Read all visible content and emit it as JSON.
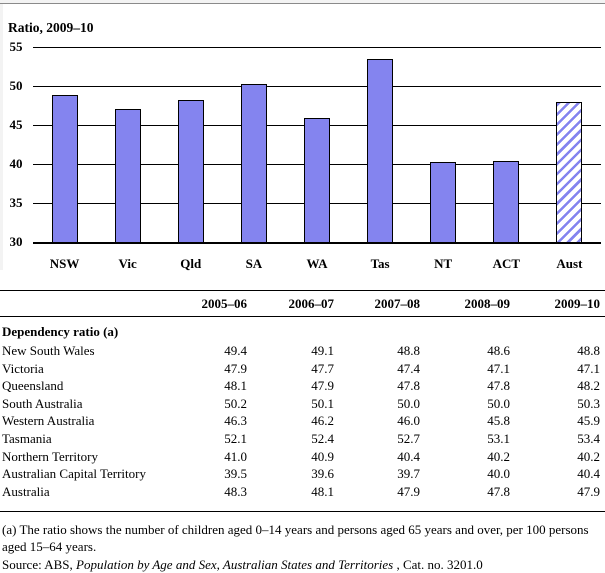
{
  "chart_data": {
    "type": "bar",
    "title": "Ratio, 2009–10",
    "categories": [
      "NSW",
      "Vic",
      "Qld",
      "SA",
      "WA",
      "Tas",
      "NT",
      "ACT",
      "Aust"
    ],
    "values": [
      48.8,
      47.1,
      48.2,
      50.3,
      45.9,
      53.4,
      40.2,
      40.4,
      47.9
    ],
    "ylim": [
      30,
      55
    ],
    "yticks": [
      30,
      35,
      40,
      45,
      50,
      55
    ],
    "grid": "horizontal",
    "legend": "none",
    "bar_color": "#8484ef",
    "bar_border_color": "#000000",
    "last_bar_style": "hatched-diagonal"
  },
  "table": {
    "columns": [
      "2005–06",
      "2006–07",
      "2007–08",
      "2008–09",
      "2009–10"
    ],
    "section_label": "Dependency ratio (a)",
    "rows": [
      {
        "label": "New South Wales",
        "values": [
          "49.4",
          "49.1",
          "48.8",
          "48.6",
          "48.8"
        ]
      },
      {
        "label": "Victoria",
        "values": [
          "47.9",
          "47.7",
          "47.4",
          "47.1",
          "47.1"
        ]
      },
      {
        "label": "Queensland",
        "values": [
          "48.1",
          "47.9",
          "47.8",
          "47.8",
          "48.2"
        ]
      },
      {
        "label": "South Australia",
        "values": [
          "50.2",
          "50.1",
          "50.0",
          "50.0",
          "50.3"
        ]
      },
      {
        "label": "Western Australia",
        "values": [
          "46.3",
          "46.2",
          "46.0",
          "45.8",
          "45.9"
        ]
      },
      {
        "label": "Tasmania",
        "values": [
          "52.1",
          "52.4",
          "52.7",
          "53.1",
          "53.4"
        ]
      },
      {
        "label": "Northern Territory",
        "values": [
          "41.0",
          "40.9",
          "40.4",
          "40.2",
          "40.2"
        ]
      },
      {
        "label": "Australian Capital Territory",
        "values": [
          "39.5",
          "39.6",
          "39.7",
          "40.0",
          "40.4"
        ]
      },
      {
        "label": "Australia",
        "values": [
          "48.3",
          "48.1",
          "47.9",
          "47.8",
          "47.9"
        ]
      }
    ]
  },
  "footnotes": {
    "note_a": "(a) The ratio shows the number of children aged 0–14 years and persons aged 65 years and over, per 100 persons aged 15–64 years.",
    "source_prefix": "Source: ABS, ",
    "source_title": "Population by Age and Sex, Australian States and Territories",
    "source_suffix": " , Cat. no. 3201.0"
  }
}
